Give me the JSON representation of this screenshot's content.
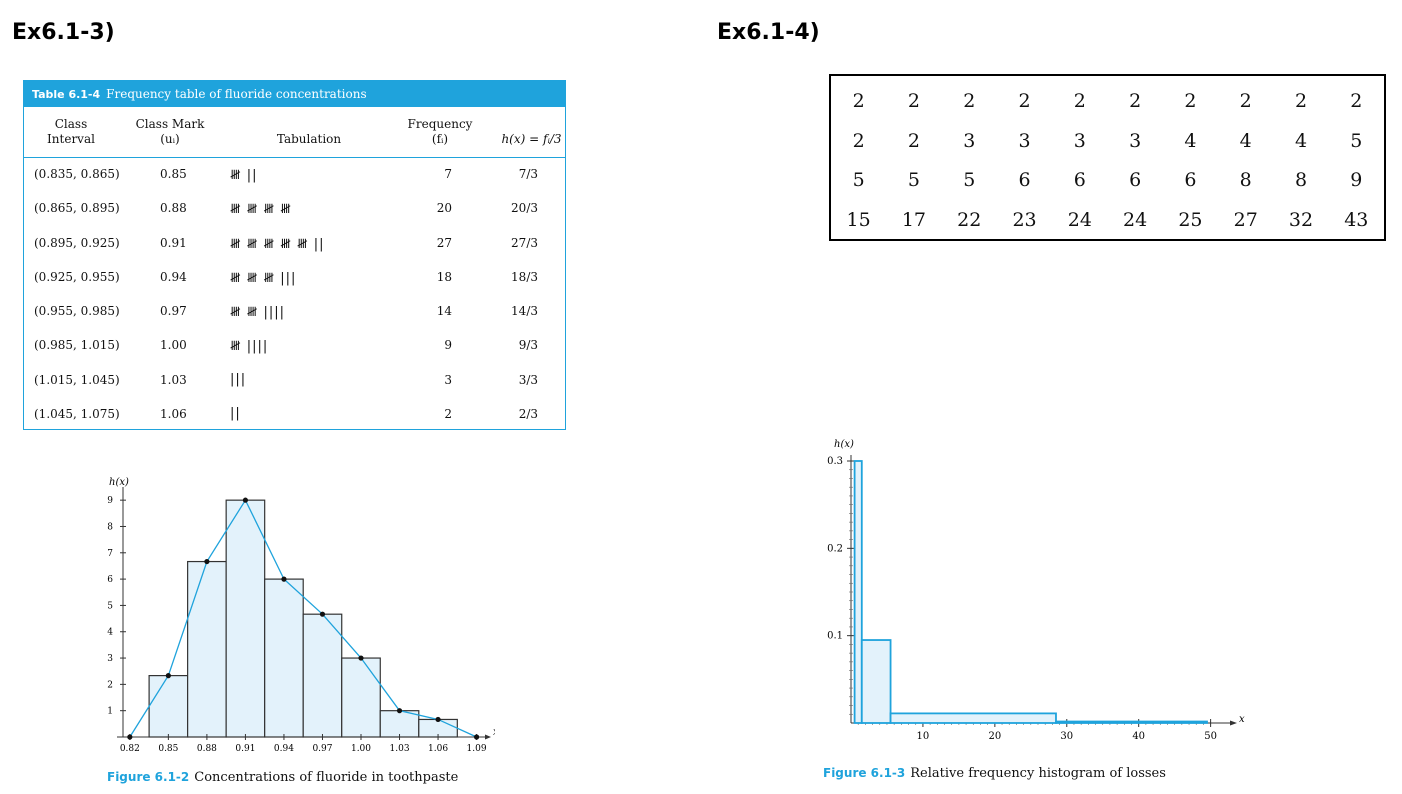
{
  "headings": {
    "left": "Ex6.1-3)",
    "right": "Ex6.1-4)"
  },
  "table": {
    "number": "Table 6.1-4",
    "caption": "Frequency table of fluoride concentrations",
    "columns": {
      "class_interval": [
        "Class",
        "Interval"
      ],
      "class_mark": [
        "Class Mark",
        "(uᵢ)"
      ],
      "tabulation": "Tabulation",
      "frequency": [
        "Frequency",
        "(fᵢ)"
      ],
      "hx": "h(x) = fᵢ/3"
    },
    "rows": [
      {
        "interval": "(0.835, 0.865)",
        "mark": "0.85",
        "tally": "𝍸 ||",
        "freq": "7",
        "hx": "7/3"
      },
      {
        "interval": "(0.865, 0.895)",
        "mark": "0.88",
        "tally": "𝍸 𝍸 𝍸 𝍸",
        "freq": "20",
        "hx": "20/3"
      },
      {
        "interval": "(0.895, 0.925)",
        "mark": "0.91",
        "tally": "𝍸 𝍸 𝍸 𝍸 𝍸 ||",
        "freq": "27",
        "hx": "27/3"
      },
      {
        "interval": "(0.925, 0.955)",
        "mark": "0.94",
        "tally": "𝍸 𝍸 𝍸 |||",
        "freq": "18",
        "hx": "18/3"
      },
      {
        "interval": "(0.955, 0.985)",
        "mark": "0.97",
        "tally": "𝍸 𝍸 ||||",
        "freq": "14",
        "hx": "14/3"
      },
      {
        "interval": "(0.985, 1.015)",
        "mark": "1.00",
        "tally": "𝍸 ||||",
        "freq": "9",
        "hx": "9/3"
      },
      {
        "interval": "(1.015, 1.045)",
        "mark": "1.03",
        "tally": "|||",
        "freq": "3",
        "hx": "3/3"
      },
      {
        "interval": "(1.045, 1.075)",
        "mark": "1.06",
        "tally": "||",
        "freq": "2",
        "hx": "2/3"
      }
    ]
  },
  "data_grid": [
    [
      "2",
      "2",
      "2",
      "2",
      "2",
      "2",
      "2",
      "2",
      "2",
      "2"
    ],
    [
      "2",
      "2",
      "3",
      "3",
      "3",
      "3",
      "4",
      "4",
      "4",
      "5"
    ],
    [
      "5",
      "5",
      "5",
      "6",
      "6",
      "6",
      "6",
      "8",
      "8",
      "9"
    ],
    [
      "15",
      "17",
      "22",
      "23",
      "24",
      "24",
      "25",
      "27",
      "32",
      "43"
    ]
  ],
  "chart_data": [
    {
      "type": "bar",
      "figure_number": "Figure 6.1-2",
      "caption": "Concentrations of fluoride in toothpaste",
      "ylabel": "h(x)",
      "xlabel": "x",
      "x_ticks": [
        "0.82",
        "0.85",
        "0.88",
        "0.91",
        "0.94",
        "0.97",
        "1.00",
        "1.03",
        "1.06",
        "1.09"
      ],
      "y_ticks": [
        "1",
        "2",
        "3",
        "4",
        "5",
        "6",
        "7",
        "8",
        "9"
      ],
      "bin_edges": [
        0.835,
        0.865,
        0.895,
        0.925,
        0.955,
        0.985,
        1.015,
        1.045,
        1.075
      ],
      "values": [
        2.333,
        6.667,
        9,
        6,
        4.667,
        3,
        1,
        0.667
      ],
      "polygon_x": [
        0.82,
        0.85,
        0.88,
        0.91,
        0.94,
        0.97,
        1.0,
        1.03,
        1.06,
        1.09
      ],
      "polygon_y": [
        0,
        2.333,
        6.667,
        9,
        6,
        4.667,
        3,
        1,
        0.667,
        0
      ],
      "xlim": [
        0.81,
        1.095
      ],
      "ylim": [
        0,
        9.5
      ],
      "colors": {
        "fill": "#e3f2fb",
        "edge": "#333333",
        "polygon": "#1fa3dc"
      }
    },
    {
      "type": "bar",
      "figure_number": "Figure 6.1-3",
      "caption": "Relative frequency histogram of losses",
      "ylabel": "h(x)",
      "xlabel": "x",
      "x_ticks": [
        "10",
        "20",
        "30",
        "40",
        "50"
      ],
      "y_ticks": [
        "0.1",
        "0.2",
        "0.3"
      ],
      "bin_edges": [
        0.5,
        1.5,
        5.5,
        28.5,
        49.5
      ],
      "values": [
        0.3,
        0.095,
        0.011,
        0.0017
      ],
      "xlim": [
        0,
        52
      ],
      "ylim": [
        0,
        0.3
      ],
      "colors": {
        "fill": "#e3f2fb",
        "edge": "#1fa3dc"
      }
    }
  ]
}
